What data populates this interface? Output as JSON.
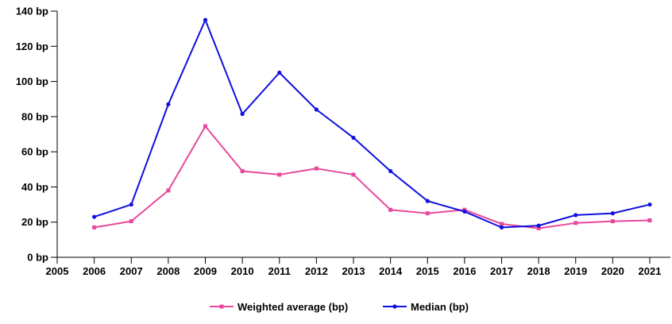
{
  "chart_data": {
    "type": "line",
    "x": [
      2006,
      2007,
      2008,
      2009,
      2010,
      2011,
      2012,
      2013,
      2014,
      2015,
      2016,
      2017,
      2018,
      2019,
      2020,
      2021
    ],
    "x_ticks": [
      "2005",
      "2006",
      "2007",
      "2008",
      "2009",
      "2010",
      "2011",
      "2012",
      "2013",
      "2014",
      "2015",
      "2016",
      "2017",
      "2018",
      "2019",
      "2020",
      "2021"
    ],
    "y_ticks": [
      "0 bp",
      "20 bp",
      "40 bp",
      "60 bp",
      "80 bp",
      "100 bp",
      "120 bp",
      "140 bp"
    ],
    "xlim": [
      2005,
      2021
    ],
    "ylim": [
      0,
      140
    ],
    "grid": false,
    "legend_position": "bottom",
    "series": [
      {
        "name": "Weighted average (bp)",
        "color": "#e8479b",
        "marker": "square",
        "values": [
          17,
          20.5,
          38,
          74.5,
          49,
          47,
          50.5,
          47,
          27,
          25,
          27,
          19,
          16.5,
          19.5,
          20.5,
          21
        ]
      },
      {
        "name": "Median (bp)",
        "color": "#1010e0",
        "marker": "circle",
        "values": [
          23,
          30,
          87,
          135,
          81.5,
          105,
          84,
          68,
          49,
          32,
          26,
          17,
          18,
          24,
          25,
          30
        ]
      }
    ]
  }
}
